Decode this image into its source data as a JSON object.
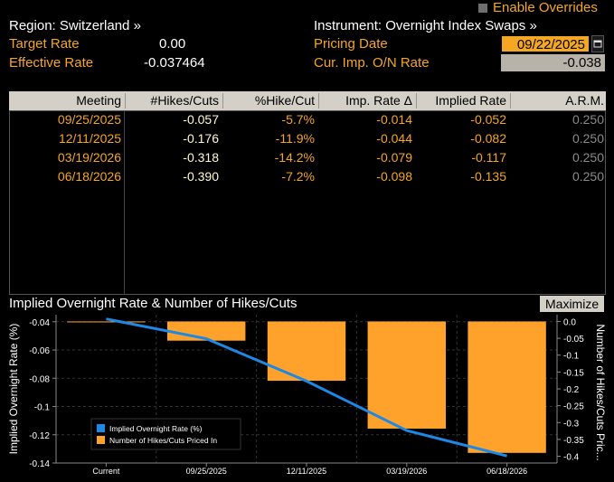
{
  "header": {
    "enable_overrides": "Enable Overrides",
    "region": "Region: Switzerland »",
    "instrument": "Instrument: Overnight Index Swaps »",
    "target_rate_label": "Target Rate",
    "target_rate_value": "0.00",
    "effective_rate_label": "Effective Rate",
    "effective_rate_value": "-0.037464",
    "pricing_date_label": "Pricing Date",
    "pricing_date_value": "09/22/2025",
    "cur_imp_label": "Cur. Imp. O/N Rate",
    "cur_imp_value": "-0.038"
  },
  "table": {
    "columns": [
      "Meeting",
      "#Hikes/Cuts",
      "%Hike/Cut",
      "Imp. Rate Δ",
      "Implied Rate",
      "A.R.M."
    ],
    "rows": [
      [
        "09/25/2025",
        "-0.057",
        "-5.7%",
        "-0.014",
        "-0.052",
        "0.250"
      ],
      [
        "12/11/2025",
        "-0.176",
        "-11.9%",
        "-0.044",
        "-0.082",
        "0.250"
      ],
      [
        "03/19/2026",
        "-0.318",
        "-14.2%",
        "-0.079",
        "-0.117",
        "0.250"
      ],
      [
        "06/18/2026",
        "-0.390",
        "-7.2%",
        "-0.098",
        "-0.135",
        "0.250"
      ]
    ]
  },
  "chart_panel": {
    "title": "Implied Overnight Rate & Number of Hikes/Cuts",
    "maximize_label": "Maximize"
  },
  "chart_data": {
    "type": "bar",
    "categories": [
      "Current",
      "09/25/2025",
      "12/11/2025",
      "03/19/2026",
      "06/18/2026"
    ],
    "ylabel_left": "Implied Overnight Rate (%)",
    "ylabel_right": "Number of Hikes/Cuts Pric...",
    "y_left_ticks": [
      "-0.04",
      "-0.06",
      "-0.08",
      "-0.1",
      "-0.12",
      "-0.14"
    ],
    "y_left_range": [
      -0.14,
      -0.035
    ],
    "y_right_ticks": [
      "0.0",
      "-0.05",
      "-0.1",
      "-0.15",
      "-0.2",
      "-0.25",
      "-0.3",
      "-0.35",
      "-0.4"
    ],
    "y_right_range": [
      -0.42,
      0.02
    ],
    "series": [
      {
        "name": "Implied Overnight Rate (%)",
        "type": "line",
        "color": "#1e88e5",
        "values": [
          -0.038,
          -0.052,
          -0.082,
          -0.117,
          -0.135
        ]
      },
      {
        "name": "Number of Hikes/Cuts Priced In",
        "type": "bar",
        "color": "#ffa22b",
        "values": [
          0.0,
          -0.057,
          -0.176,
          -0.318,
          -0.39
        ]
      }
    ],
    "legend_position": "bottom-left"
  },
  "colors": {
    "accent_orange": "#f5a623",
    "line_blue": "#1e88e5",
    "bar_orange": "#ffa22b"
  }
}
